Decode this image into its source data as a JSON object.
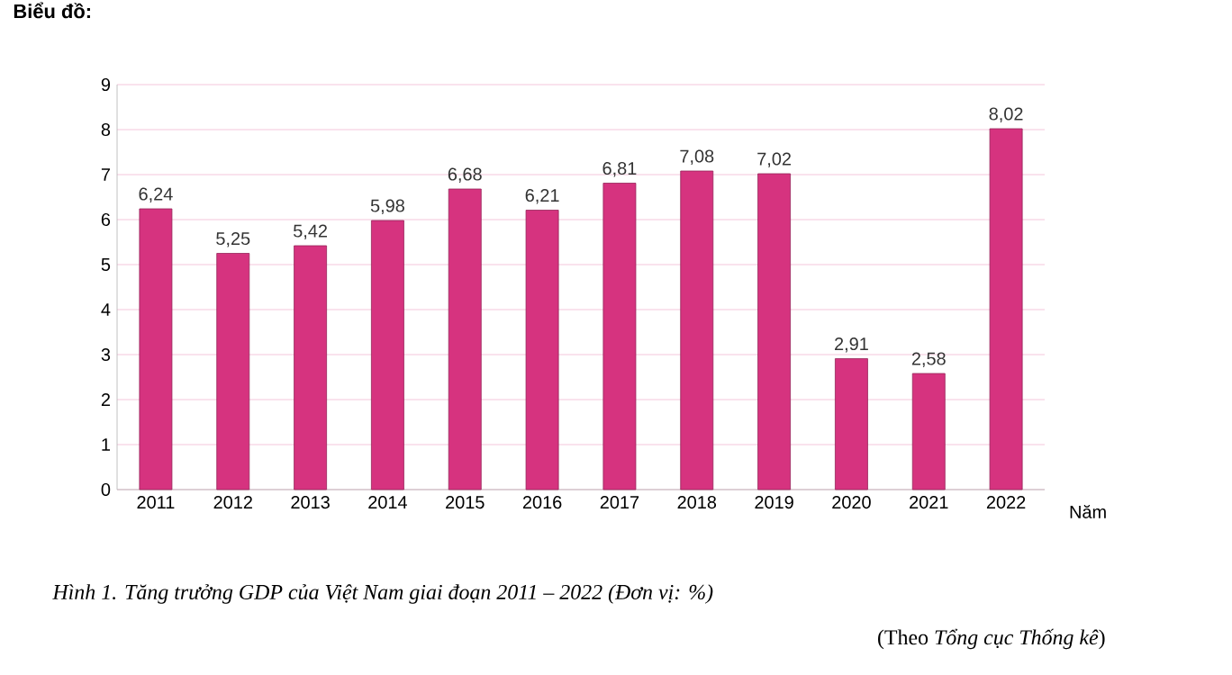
{
  "chart_data": {
    "type": "bar",
    "categories": [
      "2011",
      "2012",
      "2013",
      "2014",
      "2015",
      "2016",
      "2017",
      "2018",
      "2019",
      "2020",
      "2021",
      "2022"
    ],
    "values": [
      6.24,
      5.25,
      5.42,
      5.98,
      6.68,
      6.21,
      6.81,
      7.08,
      7.02,
      2.91,
      2.58,
      8.02
    ],
    "value_labels": [
      "6,24",
      "5,25",
      "5,42",
      "5,98",
      "6,68",
      "6,21",
      "6,81",
      "7,08",
      "7,02",
      "2,91",
      "2,58",
      "8,02"
    ],
    "color": "#d6337f",
    "xlabel": "Năm",
    "ylim": [
      0,
      9
    ],
    "yticks": [
      0,
      1,
      2,
      3,
      4,
      5,
      6,
      7,
      8,
      9
    ],
    "grid": "y",
    "annotations": [
      "Biểu đồ:",
      "Hình 1. Tăng trưởng GDP của Việt Nam giai đoạn 2011 – 2022 (Đơn vị: %)",
      "(Theo *Tổng cục Thống kê*)"
    ]
  }
}
